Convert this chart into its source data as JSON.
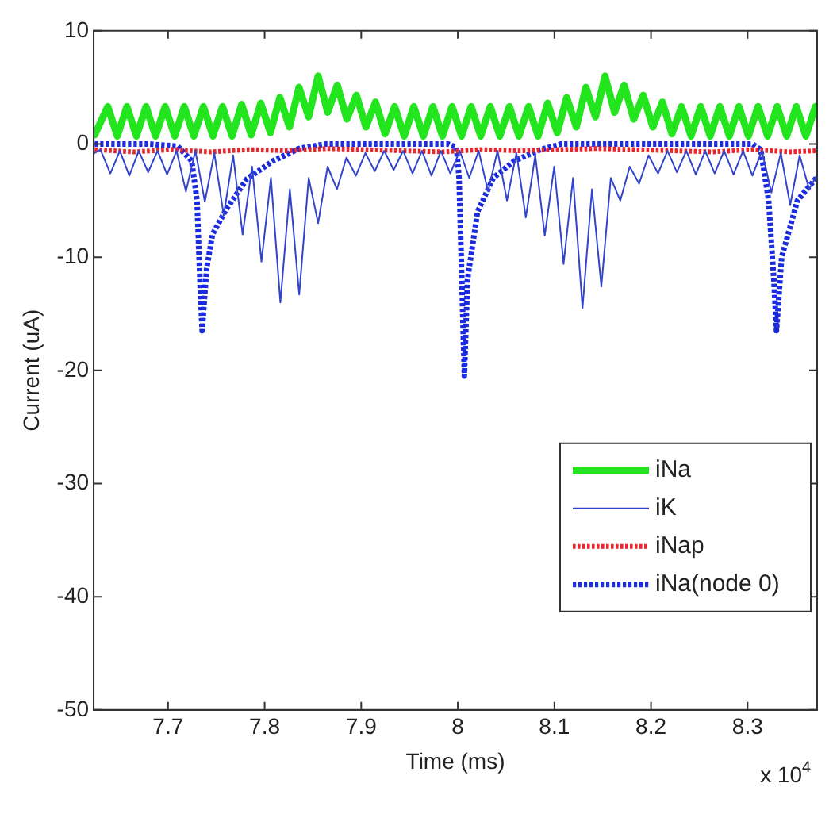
{
  "chart_data": {
    "type": "line",
    "xlabel": "Time (ms)",
    "ylabel": "Current (uA)",
    "xlim": [
      7.623,
      8.372
    ],
    "xticks": [
      7.7,
      7.8,
      7.9,
      8,
      8.1,
      8.2,
      8.3
    ],
    "ylim": [
      -50,
      10
    ],
    "yticks": [
      -50,
      -40,
      -30,
      -20,
      -10,
      0,
      10
    ],
    "grid": false,
    "legend": "bottom right",
    "marker": "none",
    "annotations": [
      "x 10$^{4}$"
    ],
    "series": [
      {
        "name": "iNa",
        "color": "#22e51e",
        "line_style": "solid",
        "x": [
          7.624,
          7.6376,
          7.6475,
          7.6574,
          7.6673,
          7.6772,
          7.6871,
          7.697,
          7.7069,
          7.7168,
          7.7267,
          7.7366,
          7.7465,
          7.7564,
          7.7663,
          7.7762,
          7.7861,
          7.796,
          7.8059,
          7.8158,
          7.8257,
          7.8356,
          7.8455,
          7.8554,
          7.8653,
          7.8752,
          7.8851,
          7.895,
          7.9049,
          7.9148,
          7.9247,
          7.9346,
          7.9445,
          7.9544,
          7.9643,
          7.9742,
          7.9841,
          7.994,
          8.0039,
          8.0138,
          8.0237,
          8.0336,
          8.0435,
          8.0534,
          8.0633,
          8.0732,
          8.0831,
          8.093,
          8.1029,
          8.1128,
          8.1227,
          8.1326,
          8.1425,
          8.1524,
          8.1623,
          8.1722,
          8.1821,
          8.192,
          8.2019,
          8.2118,
          8.2217,
          8.2316,
          8.2415,
          8.2514,
          8.2613,
          8.2712,
          8.2811,
          8.291,
          8.3009,
          8.3108,
          8.3207,
          8.3306,
          8.3405,
          8.3504,
          8.3603,
          8.3702
        ],
        "values": [
          0.8,
          3.3,
          0.7,
          3.3,
          0.7,
          3.3,
          0.7,
          3.3,
          0.7,
          3.3,
          0.7,
          3.3,
          0.7,
          3.3,
          0.7,
          3.5,
          0.8,
          3.6,
          1.0,
          4.1,
          1.5,
          5.0,
          2.4,
          6.0,
          2.8,
          5.2,
          2.2,
          4.3,
          1.5,
          3.7,
          0.9,
          3.3,
          0.7,
          3.3,
          0.7,
          3.3,
          0.7,
          3.3,
          0.7,
          3.3,
          0.7,
          3.3,
          0.7,
          3.3,
          0.7,
          3.3,
          0.7,
          3.6,
          1.0,
          4.1,
          1.5,
          5.0,
          2.4,
          6.0,
          2.8,
          5.2,
          2.2,
          4.3,
          1.5,
          3.7,
          0.9,
          3.3,
          0.7,
          3.3,
          0.7,
          3.3,
          0.7,
          3.3,
          0.7,
          3.3,
          0.7,
          3.3,
          0.7,
          3.3,
          0.7,
          3.3
        ]
      },
      {
        "name": "iK",
        "color": "#3344cc",
        "line_style": "solid",
        "x": [
          7.624,
          7.63,
          7.6403,
          7.6501,
          7.6599,
          7.6697,
          7.6794,
          7.6892,
          7.699,
          7.7088,
          7.7185,
          7.7283,
          7.7381,
          7.7479,
          7.7576,
          7.7674,
          7.7772,
          7.787,
          7.7967,
          7.8065,
          7.8163,
          7.8261,
          7.8358,
          7.8456,
          7.8554,
          7.8652,
          7.8749,
          7.8847,
          7.8945,
          7.9043,
          7.914,
          7.9238,
          7.9336,
          7.9434,
          7.9531,
          7.9629,
          7.9727,
          7.9825,
          7.9922,
          8.002,
          8.0118,
          8.0216,
          8.0313,
          8.0411,
          8.0509,
          8.0607,
          8.0704,
          8.0802,
          8.09,
          8.0998,
          8.1095,
          8.1193,
          8.1291,
          8.1389,
          8.1486,
          8.1584,
          8.1682,
          8.178,
          8.1877,
          8.1975,
          8.2073,
          8.2171,
          8.2268,
          8.2366,
          8.2464,
          8.2562,
          8.2659,
          8.2757,
          8.2855,
          8.2953,
          8.305,
          8.3148,
          8.3246,
          8.3344,
          8.3441,
          8.3539,
          8.3637,
          8.372
        ],
        "values": [
          -0.8,
          -0.5,
          -2.6,
          -0.6,
          -2.8,
          -0.6,
          -2.5,
          -0.6,
          -2.7,
          -0.6,
          -4.2,
          -0.6,
          -5.1,
          -0.8,
          -6.3,
          -1.0,
          -8.0,
          -2.0,
          -10.4,
          -3.0,
          -14.0,
          -4.0,
          -13.3,
          -3.0,
          -7.0,
          -2.0,
          -4.0,
          -1.2,
          -2.8,
          -0.8,
          -2.4,
          -0.6,
          -2.3,
          -0.6,
          -2.6,
          -0.6,
          -2.8,
          -0.6,
          -2.6,
          -0.6,
          -3.0,
          -0.6,
          -4.2,
          -0.6,
          -5.0,
          -0.8,
          -6.5,
          -1.0,
          -8.1,
          -2.0,
          -10.6,
          -3.0,
          -14.5,
          -4.0,
          -12.6,
          -3.0,
          -5.0,
          -2.0,
          -3.5,
          -1.0,
          -2.6,
          -0.6,
          -2.5,
          -0.6,
          -2.7,
          -0.6,
          -2.6,
          -0.6,
          -2.7,
          -0.6,
          -2.8,
          -0.6,
          -4.3,
          -0.8,
          -5.4,
          -1.0,
          -4.0,
          -2.7
        ]
      },
      {
        "name": "iNap",
        "color": "#e8262b",
        "line_style": "dotted",
        "x": [
          7.624,
          7.664,
          7.704,
          7.744,
          7.784,
          7.824,
          7.864,
          7.904,
          7.944,
          7.984,
          8.024,
          8.064,
          8.104,
          8.144,
          8.184,
          8.224,
          8.264,
          8.304,
          8.344,
          8.372
        ],
        "values": [
          -0.5,
          -0.7,
          -0.5,
          -0.7,
          -0.5,
          -0.6,
          -0.4,
          -0.5,
          -0.6,
          -0.7,
          -0.5,
          -0.6,
          -0.5,
          -0.4,
          -0.5,
          -0.6,
          -0.7,
          -0.5,
          -0.7,
          -0.6
        ]
      },
      {
        "name": "iNa(node 0)",
        "color": "#1a2be0",
        "line_style": "dotted",
        "x": [
          7.624,
          7.68,
          7.71,
          7.7245,
          7.73,
          7.733,
          7.7353,
          7.74,
          7.746,
          7.76,
          7.7815,
          7.8086,
          7.8358,
          7.863,
          7.99,
          7.9986,
          8.0013,
          8.0051,
          8.0068,
          8.01,
          8.0204,
          8.0367,
          8.0584,
          8.0855,
          8.1072,
          8.305,
          8.3136,
          8.3218,
          8.3272,
          8.3299,
          8.3353,
          8.3516,
          8.372
        ],
        "values": [
          0,
          0,
          -0.2,
          -1.5,
          -5,
          -12,
          -16.5,
          -11,
          -8,
          -5.8,
          -3.1,
          -1.5,
          -0.4,
          0,
          0,
          -0.3,
          -3,
          -15,
          -20.5,
          -12,
          -6,
          -3,
          -1.5,
          -0.5,
          0,
          0,
          -0.5,
          -5,
          -12,
          -16.5,
          -10,
          -5,
          -2.9
        ]
      }
    ]
  }
}
